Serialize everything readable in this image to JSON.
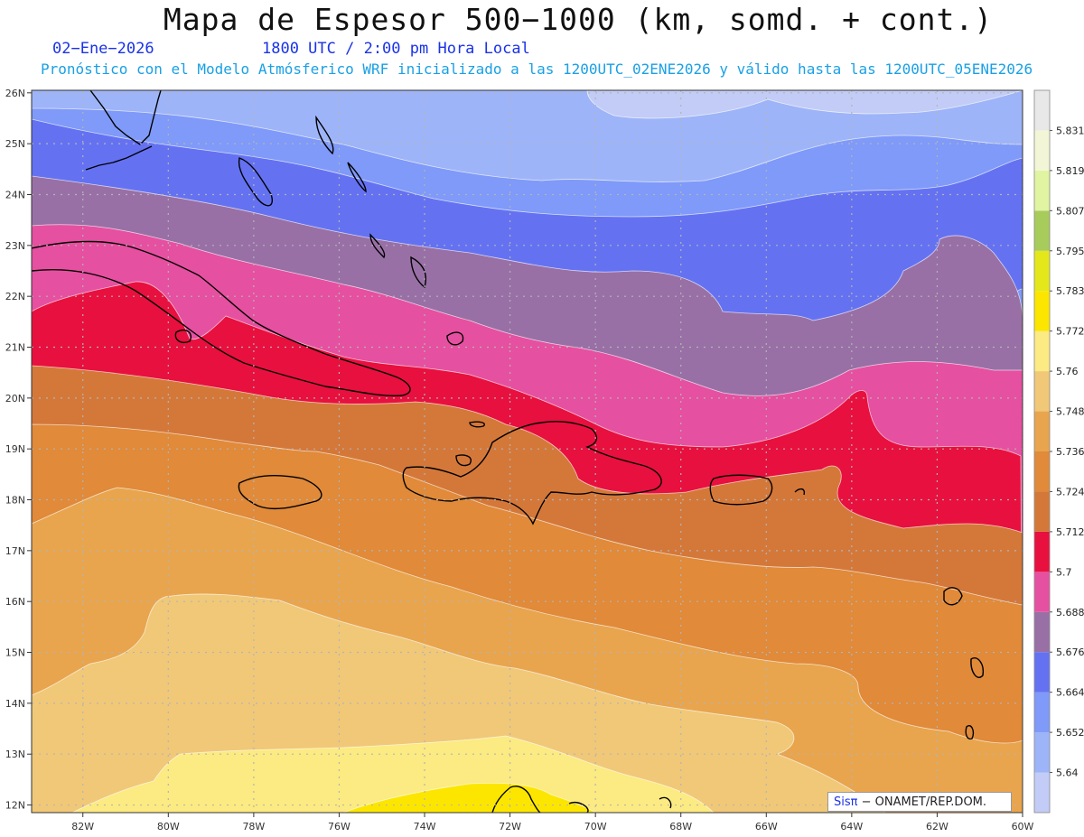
{
  "header": {
    "title": "Mapa de Espesor 500−1000 (km, somd. + cont.)",
    "date": "02−Ene−2026",
    "time": "1800 UTC / 2:00 pm Hora Local",
    "subtitle": "Pronóstico con el Modelo Atmósferico WRF inicializado a las 1200UTC_02ENE2026 y válido hasta las  1200UTC_05ENE2026"
  },
  "map": {
    "lon_labels": [
      "82W",
      "80W",
      "78W",
      "76W",
      "74W",
      "72W",
      "70W",
      "68W",
      "66W",
      "64W",
      "62W",
      "60W"
    ],
    "lat_labels": [
      "26N",
      "25N",
      "24N",
      "23N",
      "22N",
      "21N",
      "20N",
      "19N",
      "18N",
      "17N",
      "16N",
      "15N",
      "14N",
      "13N",
      "12N"
    ],
    "lon_values": [
      -82,
      -80,
      -78,
      -76,
      -74,
      -72,
      -70,
      -68,
      -66,
      -64,
      -62,
      -60
    ],
    "lat_values": [
      26,
      25,
      24,
      23,
      22,
      21,
      20,
      19,
      18,
      17,
      16,
      15,
      14,
      13,
      12
    ],
    "lon_range": [
      -83.2,
      -60
    ],
    "lat_range": [
      11.85,
      26.05
    ]
  },
  "colorbar": {
    "labels": [
      "5.64",
      "5.652",
      "5.664",
      "5.676",
      "5.688",
      "5.7",
      "5.712",
      "5.724",
      "5.736",
      "5.748",
      "5.76",
      "5.772",
      "5.783",
      "5.795",
      "5.807",
      "5.819",
      "5.831"
    ],
    "colors": [
      "#c2ccf6",
      "#9eb4f8",
      "#7f9af8",
      "#6472f2",
      "#9870a6",
      "#e650a0",
      "#e8103e",
      "#d4783a",
      "#e08a3a",
      "#e8a54e",
      "#f0c878",
      "#fcea82",
      "#fce600",
      "#e4e81a",
      "#a8cc5c",
      "#e0f4a2",
      "#f2f6d6",
      "#e8e8e8"
    ]
  },
  "credit": {
    "brand": "Sisπ",
    "text": "− ONAMET/REP.DOM."
  }
}
